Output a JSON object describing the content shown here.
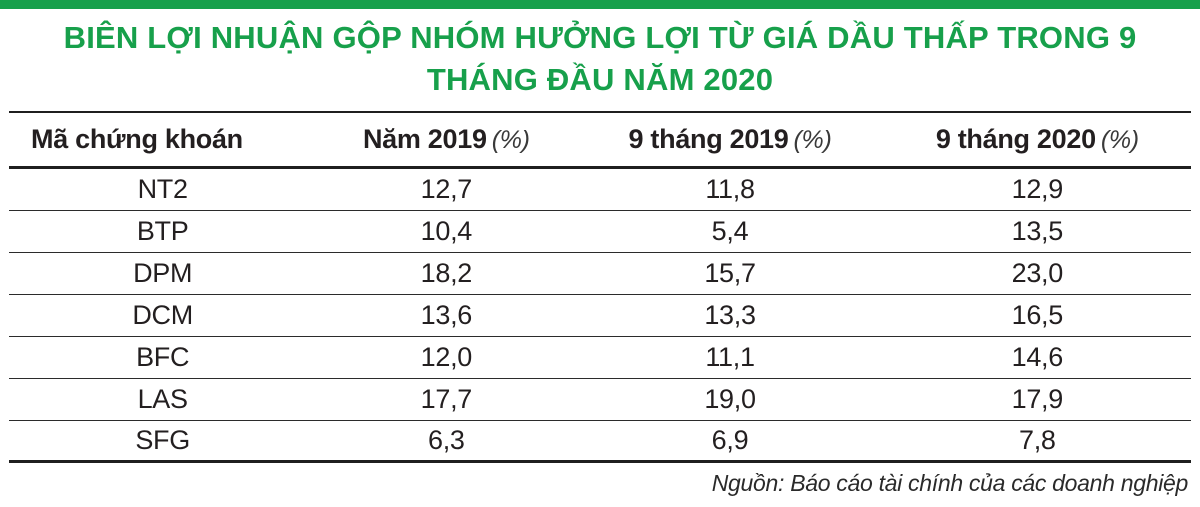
{
  "colors": {
    "accent_green": "#17a04b",
    "text_dark": "#231f20",
    "line_dark": "#1f1f1f"
  },
  "title": "BIÊN LỢI NHUẬN GỘP NHÓM HƯỞNG LỢI TỪ GIÁ DẦU THẤP TRONG 9 THÁNG ĐẦU NĂM 2020",
  "table": {
    "headers": [
      {
        "label": "Mã chứng khoán",
        "unit": ""
      },
      {
        "label": "Năm 2019",
        "unit": "(%)"
      },
      {
        "label": "9 tháng 2019",
        "unit": "(%)"
      },
      {
        "label": "9 tháng 2020",
        "unit": "(%)"
      }
    ],
    "rows": [
      [
        "NT2",
        "12,7",
        "11,8",
        "12,9"
      ],
      [
        "BTP",
        "10,4",
        "5,4",
        "13,5"
      ],
      [
        "DPM",
        "18,2",
        "15,7",
        "23,0"
      ],
      [
        "DCM",
        "13,6",
        "13,3",
        "16,5"
      ],
      [
        "BFC",
        "12,0",
        "11,1",
        "14,6"
      ],
      [
        "LAS",
        "17,7",
        "19,0",
        "17,9"
      ],
      [
        "SFG",
        "6,3",
        "6,9",
        "7,8"
      ]
    ]
  },
  "source": "Nguồn: Báo cáo tài chính của các doanh nghiệp",
  "chart_data": {
    "type": "table",
    "title": "BIÊN LỢI NHUẬN GỘP NHÓM HƯỞNG LỢI TỪ GIÁ DẦU THẤP TRONG 9 THÁNG ĐẦU NĂM 2020",
    "columns": [
      "Mã chứng khoán",
      "Năm 2019 (%)",
      "9 tháng 2019 (%)",
      "9 tháng 2020 (%)"
    ],
    "rows": [
      [
        "NT2",
        12.7,
        11.8,
        12.9
      ],
      [
        "BTP",
        10.4,
        5.4,
        13.5
      ],
      [
        "DPM",
        18.2,
        15.7,
        23.0
      ],
      [
        "DCM",
        13.6,
        13.3,
        16.5
      ],
      [
        "BFC",
        12.0,
        11.1,
        14.6
      ],
      [
        "LAS",
        17.7,
        19.0,
        17.9
      ],
      [
        "SFG",
        6.3,
        6.9,
        7.8
      ]
    ],
    "source": "Nguồn: Báo cáo tài chính của các doanh nghiệp"
  }
}
